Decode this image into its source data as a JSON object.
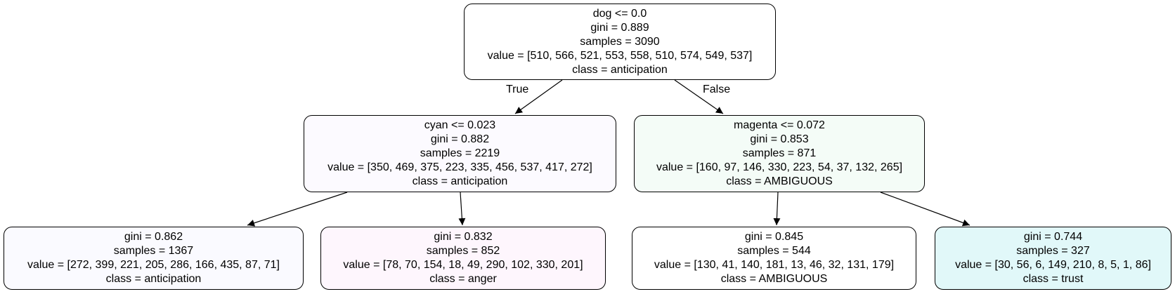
{
  "tree": {
    "root": {
      "lines": [
        "dog <= 0.0",
        "gini = 0.889",
        "samples = 3090",
        "value = [510, 566, 521, 553, 558, 510, 574, 549, 537]",
        "class = anticipation"
      ],
      "fill": "#ffffff"
    },
    "left": {
      "lines": [
        "cyan <= 0.023",
        "gini = 0.882",
        "samples = 2219",
        "value = [350, 469, 375, 223, 335, 456, 537, 417, 272]",
        "class = anticipation"
      ],
      "fill": "#fcfaff"
    },
    "right": {
      "lines": [
        "magenta <= 0.072",
        "gini = 0.853",
        "samples = 871",
        "value = [160, 97, 146, 330, 223, 54, 37, 132, 265]",
        "class = AMBIGUOUS"
      ],
      "fill": "#f4fcf7"
    },
    "leaf_ll": {
      "lines": [
        "gini = 0.862",
        "samples = 1367",
        "value = [272, 399, 221, 205, 286, 166, 435, 87, 71]",
        "class = anticipation"
      ],
      "fill": "#fafaff"
    },
    "leaf_lr": {
      "lines": [
        "gini = 0.832",
        "samples = 852",
        "value = [78, 70, 154, 18, 49, 290, 102, 330, 201]",
        "class = anger"
      ],
      "fill": "#fef6fd"
    },
    "leaf_rl": {
      "lines": [
        "gini = 0.845",
        "samples = 544",
        "value = [130, 41, 140, 181, 13, 46, 32, 131, 179]",
        "class = AMBIGUOUS"
      ],
      "fill": "#ffffff"
    },
    "leaf_rr": {
      "lines": [
        "gini = 0.744",
        "samples = 327",
        "value = [30, 56, 6, 149, 210, 8, 5, 1, 86]",
        "class = trust"
      ],
      "fill": "#e1f8f9"
    },
    "edge_labels": {
      "true": "True",
      "false": "False"
    }
  }
}
